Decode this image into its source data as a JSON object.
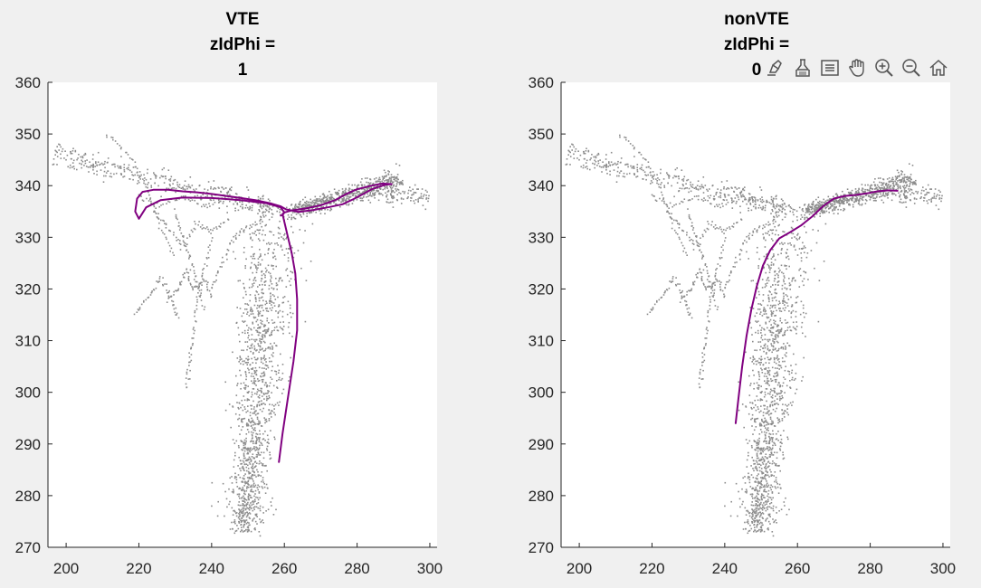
{
  "window": {
    "background": "#f0f0f0",
    "plot_background": "#ffffff",
    "scatter_color": "#8c8c8c",
    "path_color": "#800080"
  },
  "toolbar": {
    "icons": [
      "brush-icon",
      "data-tip-icon",
      "legend-icon",
      "pan-icon",
      "zoom-in-icon",
      "zoom-out-icon",
      "home-icon"
    ]
  },
  "chart_data": [
    {
      "type": "scatter",
      "title": [
        "VTE",
        "zIdPhi =",
        "1"
      ],
      "xlim": [
        195,
        302
      ],
      "ylim": [
        270,
        360
      ],
      "xticks": [
        200,
        220,
        240,
        260,
        280,
        300
      ],
      "yticks": [
        270,
        280,
        290,
        300,
        310,
        320,
        330,
        340,
        350,
        360
      ],
      "background_series": "position samples (gray dots)",
      "highlight_path": {
        "name": "trial trajectory",
        "x": [
          258.5,
          259.5,
          261,
          262.5,
          263.5,
          263.5,
          263,
          262,
          261,
          260,
          259.5,
          260,
          262,
          266,
          270,
          274,
          277,
          280,
          284,
          287,
          289.5,
          288,
          286,
          284,
          282,
          279,
          276,
          272,
          268,
          264,
          260.5,
          259,
          256,
          252,
          248,
          244,
          240,
          236,
          232,
          228,
          224,
          221,
          219.5,
          219,
          220,
          222,
          226,
          232,
          240,
          248,
          255,
          259,
          260,
          259.5,
          259
        ],
        "y": [
          286.5,
          292,
          299,
          306,
          312,
          318,
          323,
          327,
          330,
          333,
          334.5,
          334.8,
          335.2,
          335.6,
          336.2,
          337.2,
          338.4,
          339.3,
          340,
          340.4,
          340.3,
          340.2,
          339.8,
          339.3,
          338.5,
          337.4,
          336.4,
          335.8,
          335.3,
          334.9,
          335.4,
          336,
          336.6,
          337.2,
          337.6,
          338,
          338.4,
          338.7,
          338.9,
          339.2,
          339.2,
          338.8,
          337.5,
          335,
          333.6,
          335.8,
          337.2,
          337.7,
          337.6,
          337.2,
          336.6,
          335.8,
          334.8,
          334.3,
          334.2
        ]
      }
    },
    {
      "type": "scatter",
      "title": [
        "nonVTE",
        "zIdPhi =",
        "0"
      ],
      "xlim": [
        195,
        302
      ],
      "ylim": [
        270,
        360
      ],
      "xticks": [
        200,
        220,
        240,
        260,
        280,
        300
      ],
      "yticks": [
        270,
        280,
        290,
        300,
        310,
        320,
        330,
        340,
        350,
        360
      ],
      "background_series": "position samples (gray dots)",
      "highlight_path": {
        "name": "trial trajectory",
        "x": [
          243,
          243.8,
          244.8,
          246,
          247.3,
          248.8,
          250.5,
          252.5,
          255,
          258,
          261,
          264,
          267,
          270,
          273,
          276,
          279,
          282,
          285,
          287.5
        ],
        "y": [
          294,
          299,
          305,
          311,
          316,
          320.5,
          324.5,
          327.5,
          329.8,
          331,
          332.3,
          334,
          336,
          337.5,
          338,
          338.2,
          338.5,
          338.9,
          339.1,
          339
        ]
      }
    }
  ]
}
